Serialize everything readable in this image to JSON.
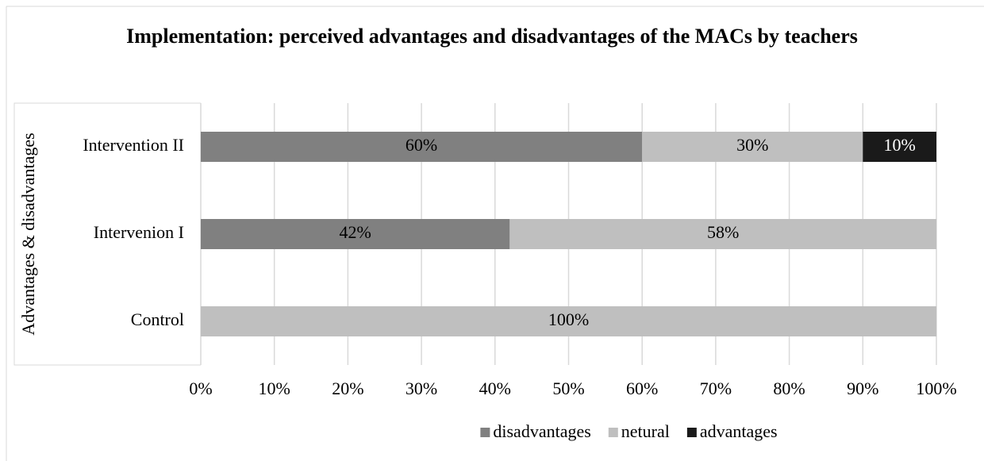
{
  "chart_data": {
    "type": "stacked-barh",
    "title": "Implementation: perceived advantages and disadvantages of the MACs by teachers",
    "y_axis_label": "Advantages & disadvantages",
    "categories": [
      "Intervention II",
      "Intervenion I",
      "Control"
    ],
    "series": [
      {
        "name": "disadvantages",
        "color": "#808080",
        "label_color": "#000000",
        "values": [
          60,
          42,
          0
        ],
        "value_labels": [
          "60%",
          "42%",
          null
        ]
      },
      {
        "name": "netural",
        "color": "#bfbfbf",
        "label_color": "#000000",
        "values": [
          30,
          58,
          100
        ],
        "value_labels": [
          "30%",
          "58%",
          "100%"
        ]
      },
      {
        "name": "advantages",
        "color": "#1a1a1a",
        "label_color": "#ffffff",
        "values": [
          10,
          0,
          0
        ],
        "value_labels": [
          "10%",
          null,
          null
        ]
      }
    ],
    "xlim": [
      0,
      100
    ],
    "xticks": [
      {
        "value": 0,
        "label": "0%"
      },
      {
        "value": 10,
        "label": "10%"
      },
      {
        "value": 20,
        "label": "20%"
      },
      {
        "value": 30,
        "label": "30%"
      },
      {
        "value": 40,
        "label": "40%"
      },
      {
        "value": 50,
        "label": "50%"
      },
      {
        "value": 60,
        "label": "60%"
      },
      {
        "value": 70,
        "label": "70%"
      },
      {
        "value": 80,
        "label": "80%"
      },
      {
        "value": 90,
        "label": "90%"
      },
      {
        "value": 100,
        "label": "100%"
      }
    ],
    "grid": true,
    "legend": "bottom"
  }
}
